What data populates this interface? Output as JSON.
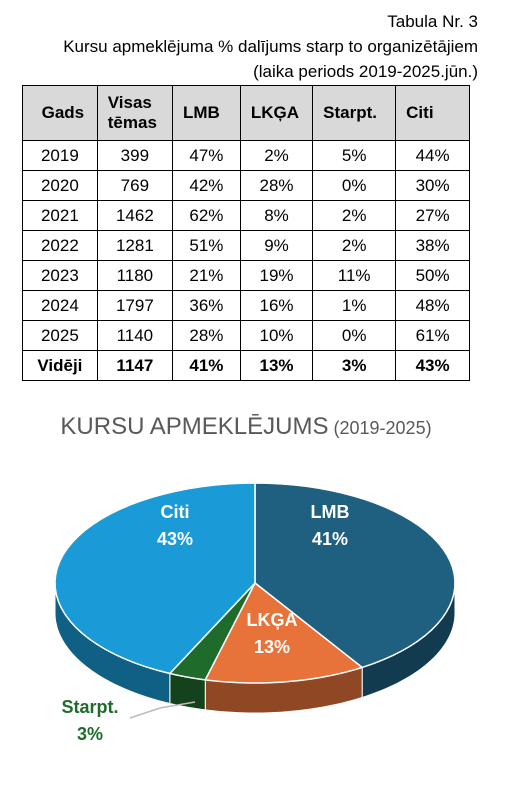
{
  "header": {
    "lines": [
      "Tabula Nr. 3",
      "Kursu apmeklējuma % dalījums starp to organizētājiem",
      "(laika periods 2019-2025.jūn.)"
    ]
  },
  "table": {
    "columns": [
      "Gads",
      "Visas tēmas",
      "LMB",
      "LKĢA",
      "Starpt.",
      "Citi"
    ],
    "rows": [
      [
        "2019",
        "399",
        "47%",
        "2%",
        "5%",
        "44%"
      ],
      [
        "2020",
        "769",
        "42%",
        "28%",
        "0%",
        "30%"
      ],
      [
        "2021",
        "1462",
        "62%",
        "8%",
        "2%",
        "27%"
      ],
      [
        "2022",
        "1281",
        "51%",
        "9%",
        "2%",
        "38%"
      ],
      [
        "2023",
        "1180",
        "21%",
        "19%",
        "11%",
        "50%"
      ],
      [
        "2024",
        "1797",
        "36%",
        "16%",
        "1%",
        "48%"
      ],
      [
        "2025",
        "1140",
        "28%",
        "10%",
        "0%",
        "61%"
      ],
      [
        "Vidēji",
        "1147",
        "41%",
        "13%",
        "3%",
        "43%"
      ]
    ]
  },
  "chart_data": {
    "type": "pie",
    "title": "KURSU APMEKLĒJUMS",
    "subtitle": "(2019-2025)",
    "categories": [
      "LMB",
      "LKĢA",
      "Starpt.",
      "Citi"
    ],
    "values": [
      41,
      13,
      3,
      43
    ],
    "value_labels": [
      "41%",
      "13%",
      "3%",
      "43%"
    ],
    "colors": [
      "#1f5f7f",
      "#e8733a",
      "#1e6b2b",
      "#1a9bd7"
    ]
  }
}
